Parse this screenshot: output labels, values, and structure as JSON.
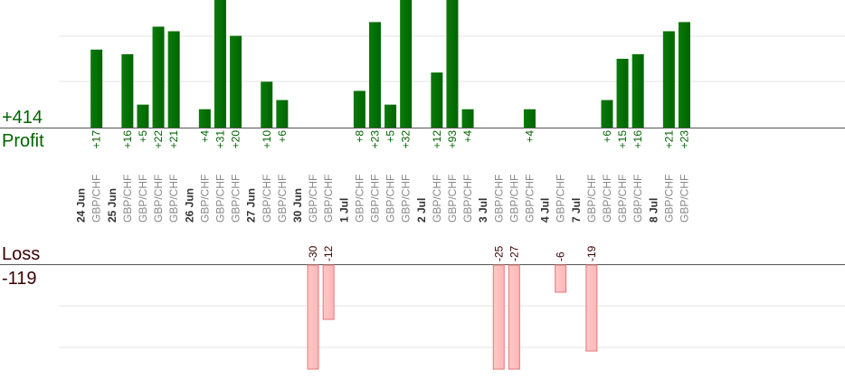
{
  "summary": {
    "profit_total": "+414",
    "profit_label": "Profit",
    "loss_label": "Loss",
    "loss_total": "-119"
  },
  "colors": {
    "profit_bar": "#006400",
    "profit_text": "#006400",
    "loss_bar": "#ffb6b6",
    "loss_bar_border": "#e07a7a",
    "loss_text": "#3a0000",
    "date_text": "#333333",
    "symbol_text": "#888888",
    "grid": "#e6e6e6",
    "baseline": "#555555"
  },
  "chart_data": {
    "type": "bar",
    "title": "",
    "profit_axis_range": [
      0,
      28
    ],
    "loss_axis_range": [
      -23,
      0
    ],
    "grid": true,
    "categories": [
      {
        "date": "24 Jun",
        "trades": [
          {
            "symbol": "GBP/CHF",
            "value": 17
          }
        ]
      },
      {
        "date": "25 Jun",
        "trades": [
          {
            "symbol": "GBP/CHF",
            "value": 16
          },
          {
            "symbol": "GBP/CHF",
            "value": 5
          },
          {
            "symbol": "GBP/CHF",
            "value": 22
          },
          {
            "symbol": "GBP/CHF",
            "value": 21
          }
        ]
      },
      {
        "date": "26 Jun",
        "trades": [
          {
            "symbol": "GBP/CHF",
            "value": 4
          },
          {
            "symbol": "GBP/CHF",
            "value": 31
          },
          {
            "symbol": "GBP/CHF",
            "value": 20
          }
        ]
      },
      {
        "date": "27 Jun",
        "trades": [
          {
            "symbol": "GBP/CHF",
            "value": 10
          },
          {
            "symbol": "GBP/CHF",
            "value": 6
          }
        ]
      },
      {
        "date": "30 Jun",
        "trades": [
          {
            "symbol": "GBP/CHF",
            "value": -30
          },
          {
            "symbol": "GBP/CHF",
            "value": -12
          }
        ]
      },
      {
        "date": "1 Jul",
        "trades": [
          {
            "symbol": "GBP/CHF",
            "value": 8
          },
          {
            "symbol": "GBP/CHF",
            "value": 23
          },
          {
            "symbol": "GBP/CHF",
            "value": 5
          },
          {
            "symbol": "GBP/CHF",
            "value": 32
          }
        ]
      },
      {
        "date": "2 Jul",
        "trades": [
          {
            "symbol": "GBP/CHF",
            "value": 12
          },
          {
            "symbol": "GBP/CHF",
            "value": 93
          },
          {
            "symbol": "GBP/CHF",
            "value": 4
          }
        ]
      },
      {
        "date": "3 Jul",
        "trades": [
          {
            "symbol": "GBP/CHF",
            "value": -25
          },
          {
            "symbol": "GBP/CHF",
            "value": -27
          },
          {
            "symbol": "GBP/CHF",
            "value": 4
          }
        ]
      },
      {
        "date": "4 Jul",
        "trades": [
          {
            "symbol": "GBP/CHF",
            "value": -6
          }
        ]
      },
      {
        "date": "7 Jul",
        "trades": [
          {
            "symbol": "GBP/CHF",
            "value": -19
          },
          {
            "symbol": "GBP/CHF",
            "value": 6
          },
          {
            "symbol": "GBP/CHF",
            "value": 15
          },
          {
            "symbol": "GBP/CHF",
            "value": 16
          }
        ]
      },
      {
        "date": "8 Jul",
        "trades": [
          {
            "symbol": "GBP/CHF",
            "value": 21
          },
          {
            "symbol": "GBP/CHF",
            "value": 23
          }
        ]
      }
    ]
  }
}
